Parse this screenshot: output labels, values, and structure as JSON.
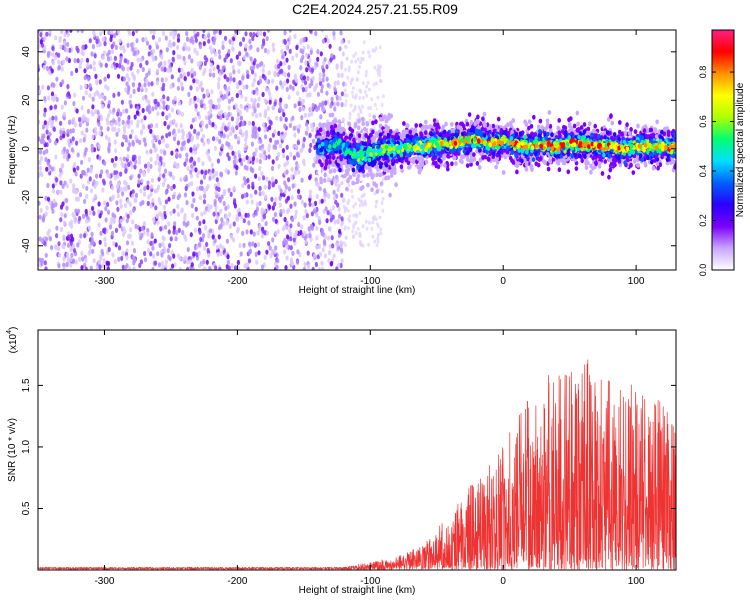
{
  "title": "C2E4.2024.257.21.55.R09",
  "chart_data": [
    {
      "type": "heatmap",
      "xlabel": "Height of straight line (km)",
      "ylabel": "Frequency (Hz)",
      "xlim": [
        -350,
        130
      ],
      "ylim": [
        -50,
        49
      ],
      "x_ticks": [
        -300,
        -200,
        -100,
        0,
        100
      ],
      "x_tick_labels": [
        "-300",
        "-200",
        "-100",
        "0",
        "100"
      ],
      "y_ticks": [
        -40,
        -20,
        0,
        20,
        40
      ],
      "y_tick_labels": [
        "-40",
        "-20",
        "0",
        "20",
        "40"
      ],
      "noise_region_x": [
        -350,
        -120
      ],
      "signal_trace": {
        "x": [
          -140,
          -125,
          -110,
          -100,
          -90,
          -80,
          -70,
          -60,
          -50,
          -40,
          -30,
          -20,
          -10,
          0,
          10,
          20,
          30,
          40,
          50,
          60,
          70,
          80,
          90,
          100,
          110,
          120,
          130
        ],
        "y": [
          0,
          2,
          -3,
          -2,
          0,
          0,
          1,
          1,
          2,
          2,
          3,
          4,
          2,
          3,
          2,
          1,
          2,
          1,
          2,
          2,
          1,
          1,
          0,
          1,
          1,
          1,
          1
        ]
      },
      "colorbar": {
        "label": "Normalized spectral amplitude",
        "range": [
          0,
          0.97
        ],
        "ticks": [
          0.0,
          0.2,
          0.4,
          0.6,
          0.8
        ],
        "tick_labels": [
          "0.0",
          "0.2",
          "0.4",
          "0.6",
          "0.8"
        ],
        "colors": [
          "#ffffff",
          "#c9a6ff",
          "#7a00ff",
          "#2a00ff",
          "#0060ff",
          "#00e0ff",
          "#00ff70",
          "#b0ff00",
          "#ffff00",
          "#ff9000",
          "#ff0000",
          "#ff2080"
        ]
      },
      "grid": false
    },
    {
      "type": "line",
      "xlabel": "Height of straight line (km)",
      "ylabel": "SNR (10 * v/v)",
      "y_multiplier_label": "(x10",
      "y_multiplier_exp": "4",
      "xlim": [
        -350,
        130
      ],
      "ylim": [
        0,
        1.95
      ],
      "x_ticks": [
        -300,
        -200,
        -100,
        0,
        100
      ],
      "x_tick_labels": [
        "-300",
        "-200",
        "-100",
        "0",
        "100"
      ],
      "y_ticks": [
        0.5,
        1.0,
        1.5
      ],
      "y_tick_labels": [
        "0.5",
        "1.0",
        "1.5"
      ],
      "color": "#ee3333",
      "envelope": {
        "x": [
          -350,
          -120,
          -100,
          -80,
          -60,
          -40,
          -20,
          0,
          20,
          40,
          60,
          80,
          100,
          120,
          130
        ],
        "y": [
          0.02,
          0.02,
          0.06,
          0.1,
          0.2,
          0.45,
          0.75,
          1.0,
          1.45,
          1.65,
          1.75,
          1.55,
          1.5,
          1.35,
          1.2
        ]
      },
      "grid": false
    }
  ]
}
